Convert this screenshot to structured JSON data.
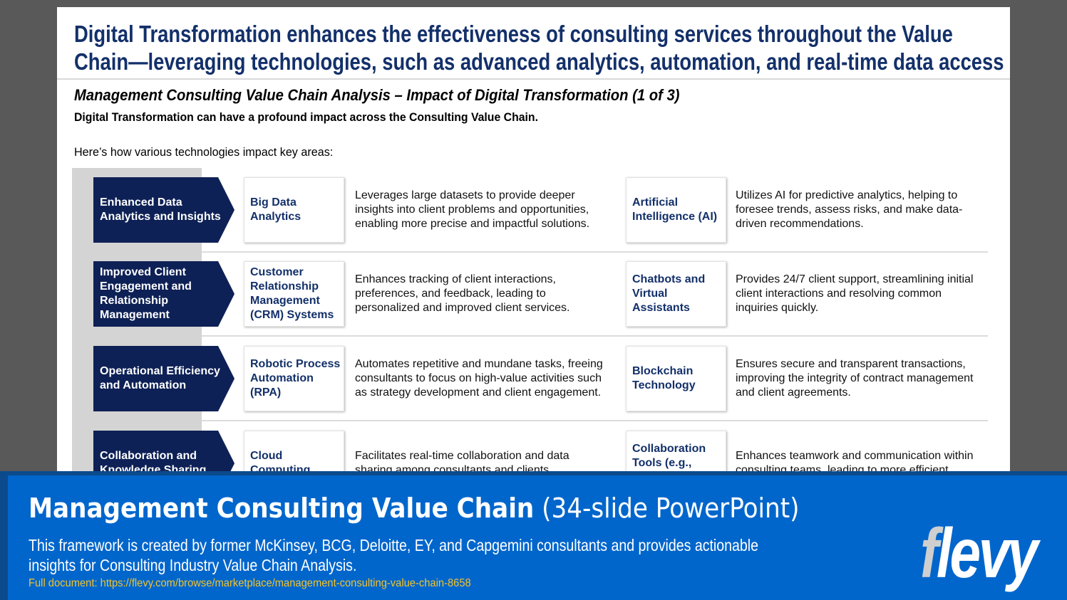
{
  "slide": {
    "title_line1": "Digital Transformation enhances the effectiveness of consulting services throughout the Value",
    "title_line2": "Chain—leveraging technologies, such as advanced analytics, automation, and real-time data access",
    "subtitle": "Management Consulting Value Chain Analysis – Impact of Digital Transformation (1 of 3)",
    "lead": "Digital Transformation can have a profound impact across the Consulting Value Chain.",
    "intro": "Here’s how various technologies impact key areas:",
    "rows": [
      {
        "area": "Enhanced Data Analytics and Insights",
        "tech1": "Big Data Analytics",
        "desc1": "Leverages large datasets to provide deeper insights into client problems and opportunities, enabling more precise and impactful solutions.",
        "tech2": "Artificial Intelligence (AI)",
        "desc2": "Utilizes AI for predictive analytics, helping to foresee trends, assess risks, and make data-driven recommendations."
      },
      {
        "area": "Improved Client Engagement and Relationship Management",
        "tech1": "Customer Relationship Management (CRM) Systems",
        "desc1": "Enhances tracking of client interactions, preferences, and feedback, leading to personalized and improved client services.",
        "tech2": "Chatbots and Virtual Assistants",
        "desc2": "Provides 24/7 client support, streamlining initial client interactions and resolving common inquiries quickly."
      },
      {
        "area": "Operational Efficiency and Automation",
        "tech1": "Robotic Process Automation (RPA)",
        "desc1": "Automates repetitive and mundane tasks, freeing consultants to focus on high-value activities such as strategy development and client engagement.",
        "tech2": "Blockchain Technology",
        "desc2": "Ensures secure and transparent transactions, improving the integrity of contract management and client agreements."
      },
      {
        "area": "Collaboration and Knowledge Sharing",
        "tech1": "Cloud Computing",
        "desc1": "Facilitates real-time collaboration and data sharing among consultants and clients,",
        "tech2": "Collaboration Tools (e.g., Microsoft",
        "desc2": "Enhances teamwork and communication within consulting teams, leading to more efficient"
      }
    ]
  },
  "banner": {
    "title_bold": "Management Consulting Value Chain",
    "title_light": " (34-slide PowerPoint)",
    "desc_line1": "This framework is created by former McKinsey, BCG, Deloitte, EY, and Capgemini consultants and provides actionable",
    "desc_line2": "insights for Consulting Industry Value Chain Analysis.",
    "link": "Full document: https://flevy.com/browse/marketplace/management-consulting-value-chain-8658",
    "logo": "flevy"
  }
}
